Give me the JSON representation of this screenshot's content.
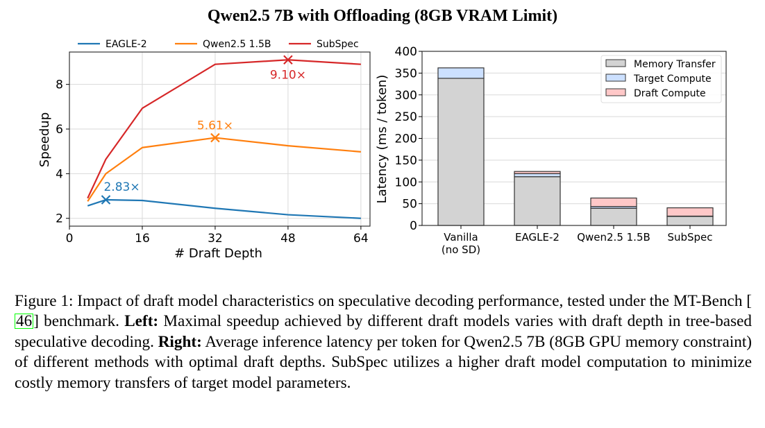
{
  "figure_title": "Qwen2.5 7B with Offloading (8GB VRAM Limit)",
  "caption": {
    "prefix": "Figure 1: Impact of draft model characteristics on speculative decoding performance, tested under the MT-Bench [",
    "citation": "46",
    "after_cite": "] benchmark. ",
    "left_label": "Left:",
    "left_text": " Maximal speedup achieved by different draft models varies with draft depth in tree-based speculative decoding. ",
    "right_label": "Right:",
    "right_text": " Average inference latency per token for Qwen2.5 7B (8GB GPU memory constraint) of different methods with optimal draft depths. SubSpec utilizes a higher draft model computation to minimize costly memory transfers of target model parameters."
  },
  "chart_data": [
    {
      "type": "line",
      "title": "",
      "xlabel": "# Draft Depth",
      "ylabel": "Speedup",
      "xlim": [
        0,
        66
      ],
      "ylim": [
        1.65,
        9.45
      ],
      "xticks": [
        0,
        16,
        32,
        48,
        64
      ],
      "yticks": [
        2,
        4,
        6,
        8
      ],
      "grid": true,
      "legend_position": "top-outside",
      "x": [
        4,
        8,
        16,
        32,
        48,
        64
      ],
      "series": [
        {
          "name": "EAGLE-2",
          "color": "#1f77b4",
          "values": [
            2.56,
            2.83,
            2.8,
            2.45,
            2.16,
            2.0
          ],
          "peak_index": 1,
          "peak_label": "2.83×"
        },
        {
          "name": "Qwen2.5 1.5B",
          "color": "#ff7f0e",
          "values": [
            2.76,
            4.0,
            5.17,
            5.61,
            5.25,
            4.98
          ],
          "peak_index": 3,
          "peak_label": "5.61×"
        },
        {
          "name": "SubSpec",
          "color": "#d62728",
          "values": [
            2.9,
            4.65,
            6.93,
            8.9,
            9.1,
            8.9
          ],
          "peak_index": 4,
          "peak_label": "9.10×"
        }
      ]
    },
    {
      "type": "bar",
      "stacked": true,
      "title": "",
      "xlabel": "",
      "ylabel": "Latency (ms / token)",
      "ylim": [
        0,
        400
      ],
      "yticks": [
        0,
        50,
        100,
        150,
        200,
        250,
        300,
        350,
        400
      ],
      "grid": true,
      "legend_position": "top-right",
      "categories": [
        "Vanilla\n(no SD)",
        "EAGLE-2",
        "Qwen2.5 1.5B",
        "SubSpec"
      ],
      "series": [
        {
          "name": "Memory Transfer",
          "color": "#d3d3d3",
          "values": [
            338,
            112,
            39.5,
            21
          ]
        },
        {
          "name": "Target Compute",
          "color": "#cce0ff",
          "values": [
            24,
            7,
            4,
            0.5
          ]
        },
        {
          "name": "Draft Compute",
          "color": "#ffc8c8",
          "values": [
            0,
            5,
            19.5,
            19
          ]
        }
      ]
    }
  ]
}
